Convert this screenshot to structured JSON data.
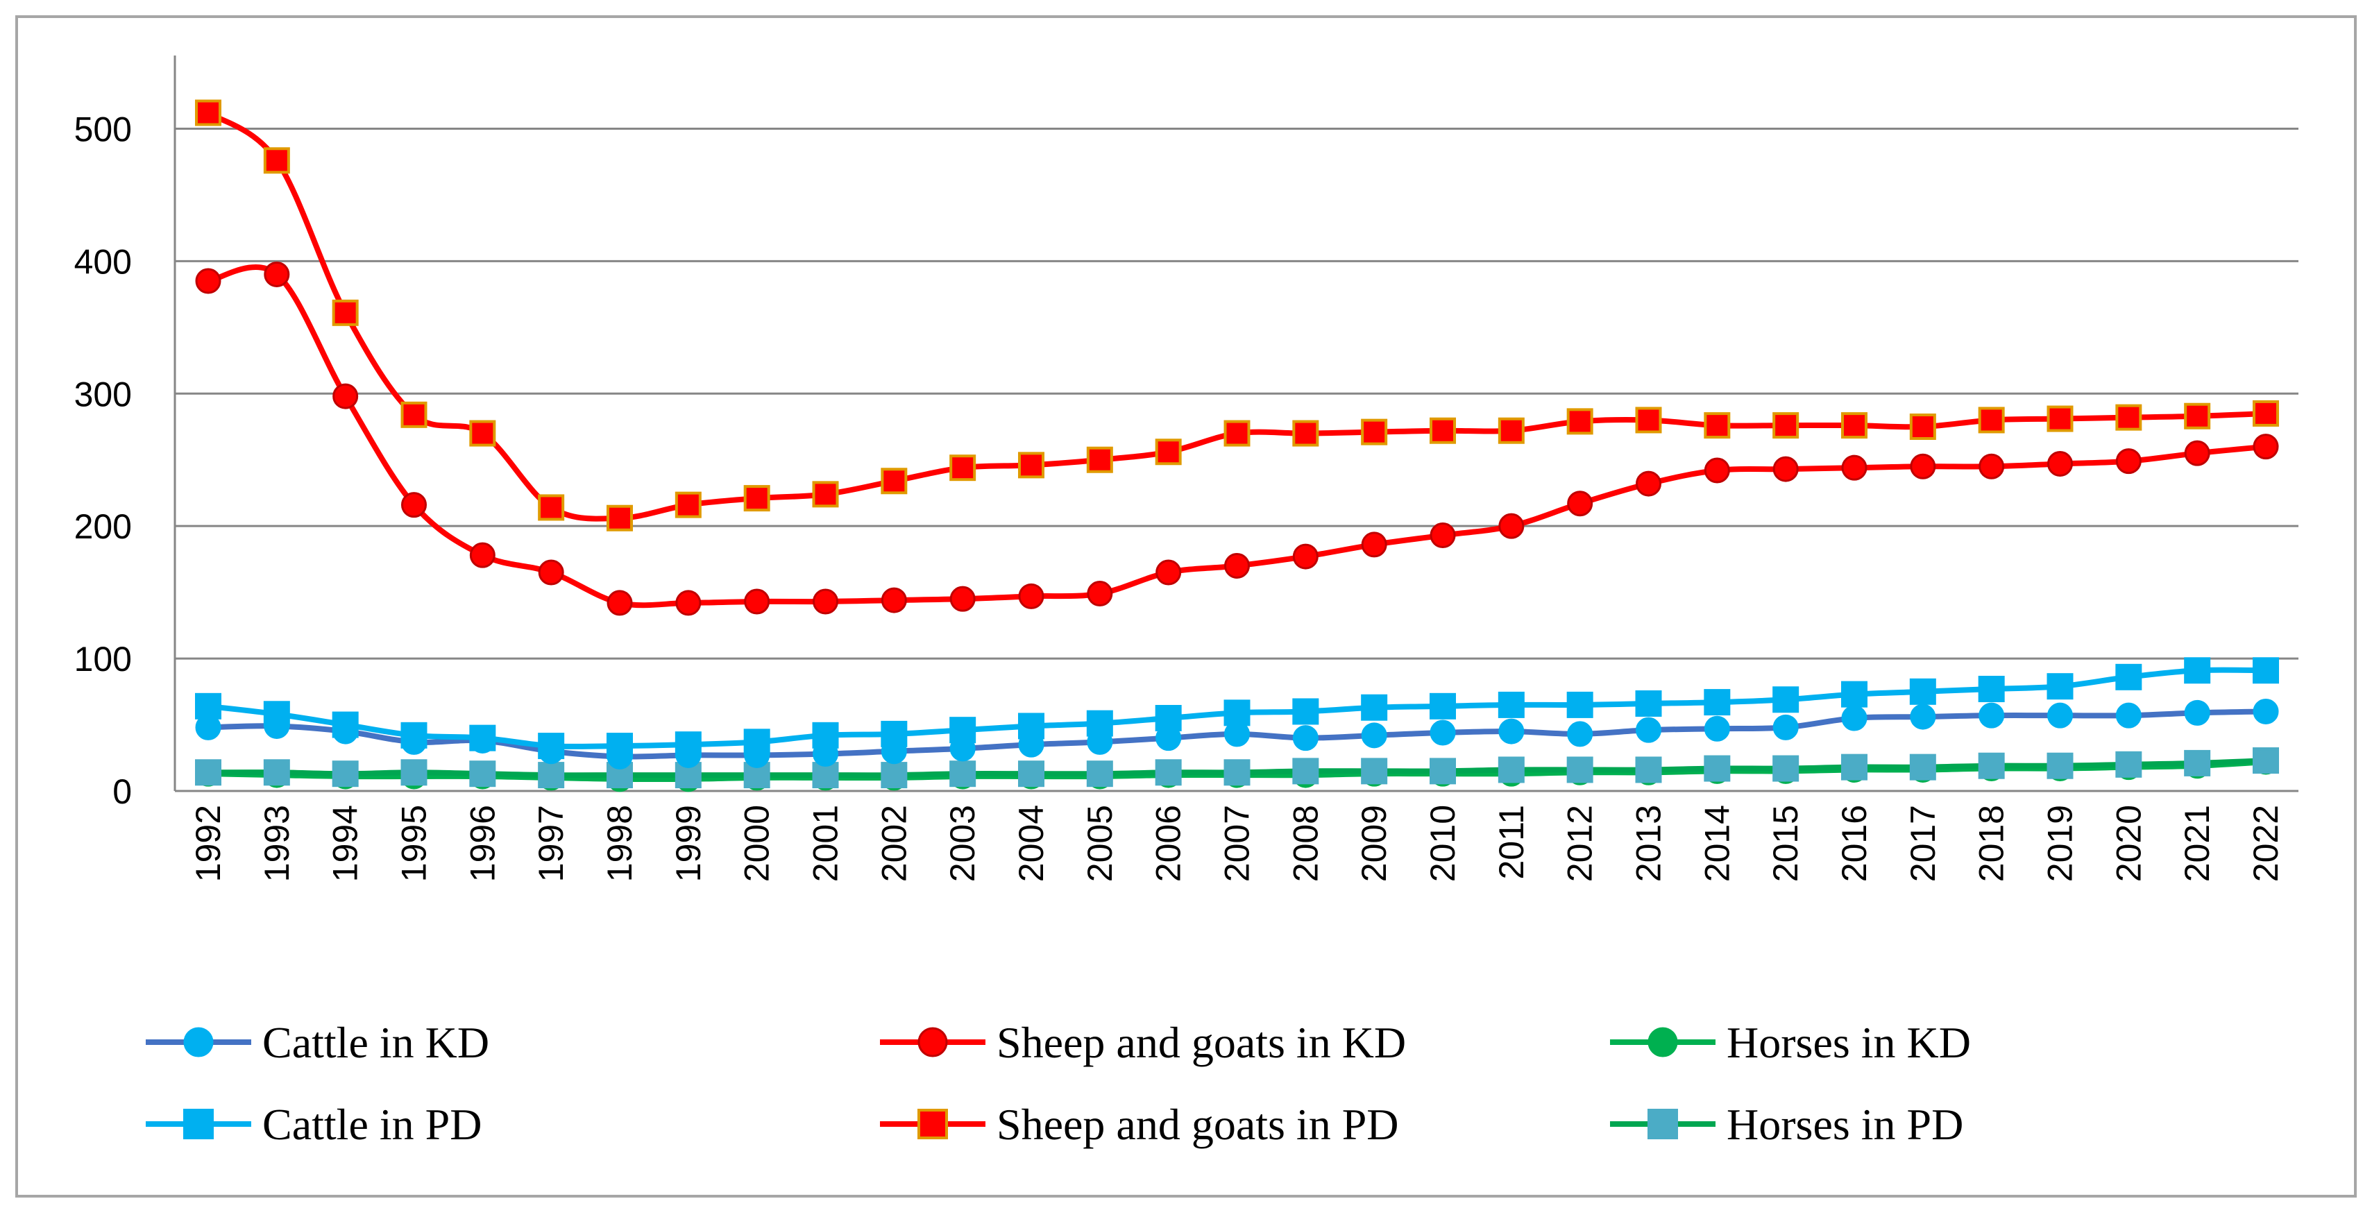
{
  "chart_data": {
    "type": "line",
    "title": "",
    "xlabel": "",
    "ylabel": "",
    "ylim": [
      0,
      550
    ],
    "yticks": [
      0,
      100,
      200,
      300,
      400,
      500
    ],
    "grid": "horizontal",
    "legend_position": "bottom",
    "categories": [
      "1992",
      "1993",
      "1994",
      "1995",
      "1996",
      "1997",
      "1998",
      "1999",
      "2000",
      "2001",
      "2002",
      "2003",
      "2004",
      "2005",
      "2006",
      "2007",
      "2008",
      "2009",
      "2010",
      "2011",
      "2012",
      "2013",
      "2014",
      "2015",
      "2016",
      "2017",
      "2018",
      "2019",
      "2020",
      "2021",
      "2022"
    ],
    "series": [
      {
        "name": "Cattle in KD",
        "color": "#4472C4",
        "marker": "circle",
        "values": [
          48,
          49,
          45,
          37,
          38,
          30,
          26,
          27,
          27,
          28,
          30,
          32,
          35,
          37,
          40,
          43,
          40,
          42,
          44,
          45,
          43,
          46,
          47,
          48,
          55,
          56,
          57,
          57,
          57,
          59,
          60
        ]
      },
      {
        "name": "Sheep and goats in KD",
        "color": "#FF0000",
        "marker": "circle",
        "values": [
          385,
          390,
          298,
          216,
          178,
          165,
          142,
          142,
          143,
          143,
          144,
          145,
          147,
          149,
          165,
          170,
          177,
          186,
          193,
          200,
          217,
          232,
          242,
          243,
          244,
          245,
          245,
          247,
          249,
          255,
          260
        ]
      },
      {
        "name": "Horses in KD",
        "color": "#00B050",
        "marker": "circle",
        "values": [
          13,
          12,
          11,
          11,
          11,
          10,
          9,
          9,
          10,
          10,
          10,
          11,
          11,
          11,
          12,
          12,
          12,
          13,
          13,
          13,
          14,
          14,
          15,
          15,
          16,
          16,
          17,
          17,
          18,
          19,
          22
        ]
      },
      {
        "name": "Cattle in PD",
        "color": "#00B0F0",
        "marker": "square",
        "values": [
          64,
          58,
          50,
          42,
          40,
          34,
          34,
          35,
          37,
          42,
          43,
          46,
          49,
          51,
          55,
          59,
          60,
          63,
          64,
          65,
          65,
          66,
          67,
          69,
          73,
          75,
          77,
          79,
          86,
          91,
          91
        ]
      },
      {
        "name": "Sheep and goats in PD",
        "color": "#FF0000",
        "marker": "square",
        "values": [
          512,
          476,
          361,
          284,
          270,
          214,
          206,
          216,
          221,
          224,
          234,
          244,
          246,
          250,
          256,
          270,
          270,
          271,
          272,
          272,
          279,
          280,
          276,
          276,
          276,
          275,
          280,
          281,
          282,
          283,
          285
        ]
      },
      {
        "name": "Horses in PD",
        "color": "#00A651",
        "marker": "square",
        "values": [
          14,
          14,
          13,
          14,
          13,
          12,
          12,
          12,
          12,
          12,
          12,
          13,
          13,
          13,
          14,
          14,
          15,
          15,
          15,
          16,
          16,
          16,
          17,
          17,
          18,
          18,
          19,
          19,
          20,
          21,
          23
        ]
      }
    ],
    "legend": [
      {
        "label": "Cattle in KD",
        "line_color": "#4472C4",
        "marker_fill": "#00B0F0",
        "marker_stroke": "#00B0F0",
        "marker": "circle"
      },
      {
        "label": "Sheep and goats in KD",
        "line_color": "#FF0000",
        "marker_fill": "#FF0000",
        "marker_stroke": "#C00000",
        "marker": "circle"
      },
      {
        "label": "Horses in KD",
        "line_color": "#00B050",
        "marker_fill": "#00B050",
        "marker_stroke": "#00B050",
        "marker": "circle"
      },
      {
        "label": "Cattle in PD",
        "line_color": "#00B0F0",
        "marker_fill": "#00B0F0",
        "marker_stroke": "#00B0F0",
        "marker": "square"
      },
      {
        "label": "Sheep and goats in PD",
        "line_color": "#FF0000",
        "marker_fill": "#FF0000",
        "marker_stroke": "#E09A00",
        "marker": "square"
      },
      {
        "label": "Horses in PD",
        "line_color": "#00A651",
        "marker_fill": "#4BACC6",
        "marker_stroke": "#4BACC6",
        "marker": "square"
      }
    ]
  }
}
